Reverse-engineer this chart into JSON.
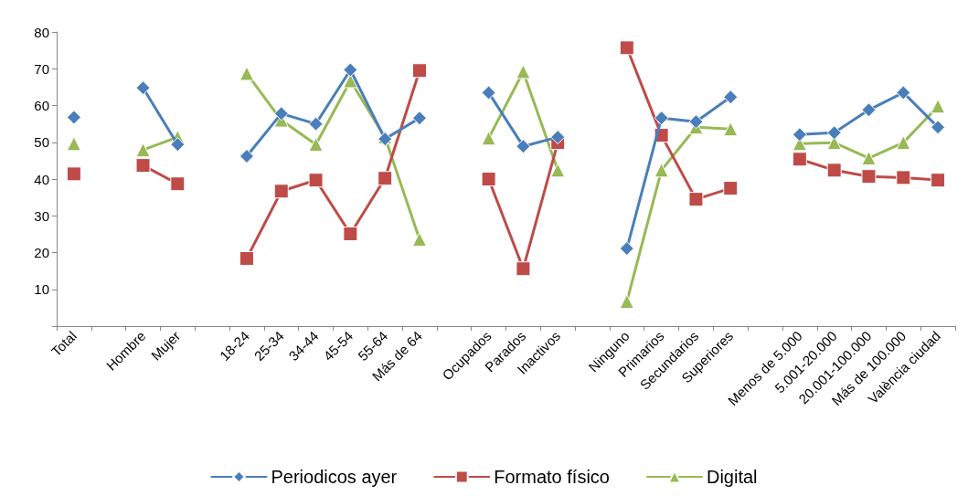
{
  "chart_data": {
    "type": "line",
    "categories": [
      "Total",
      null,
      "Hombre",
      "Mujer",
      null,
      "18-24",
      "25-34",
      "34-44",
      "45-54",
      "55-64",
      "Más de 64",
      null,
      "Ocupados",
      "Parados",
      "Inactivos",
      null,
      "Ninguno",
      "Primarios",
      "Secundarios",
      "Superiores",
      null,
      "Menos de 5.000",
      "5.001-20.000",
      "20.001-100.000",
      "Más de 100.000",
      "València ciudad"
    ],
    "series": [
      {
        "name": "Periodicos ayer",
        "color": "#4a7ebb",
        "marker": "diamond",
        "values": [
          56.8,
          null,
          64.8,
          49.4,
          null,
          46.2,
          57.8,
          55.0,
          69.7,
          50.9,
          56.6,
          null,
          63.5,
          48.9,
          51.4,
          null,
          21.1,
          56.6,
          55.6,
          62.3,
          null,
          52.1,
          52.6,
          58.8,
          63.5,
          54.1
        ]
      },
      {
        "name": "Formato físico",
        "color": "#be4b48",
        "marker": "square",
        "values": [
          41.4,
          null,
          43.7,
          38.7,
          null,
          18.4,
          36.7,
          39.7,
          25.1,
          40.2,
          69.5,
          null,
          40.0,
          15.6,
          49.9,
          null,
          75.7,
          51.9,
          34.5,
          37.5,
          null,
          45.4,
          42.4,
          40.7,
          40.4,
          39.7
        ]
      },
      {
        "name": "Digital",
        "color": "#98b954",
        "marker": "triangle",
        "values": [
          49.6,
          null,
          47.9,
          51.4,
          null,
          68.7,
          56.0,
          49.4,
          66.7,
          51.4,
          23.6,
          null,
          51.1,
          69.2,
          42.4,
          null,
          6.7,
          42.4,
          54.1,
          53.6,
          null,
          49.6,
          49.9,
          45.7,
          49.9,
          59.8
        ]
      }
    ],
    "ylim": [
      0,
      80
    ],
    "yticks": [
      {
        "value": 0,
        "label": null
      },
      10,
      20,
      30,
      40,
      50,
      60,
      70,
      80
    ],
    "grid": false,
    "legend": "bottom",
    "line_style": "solid"
  }
}
